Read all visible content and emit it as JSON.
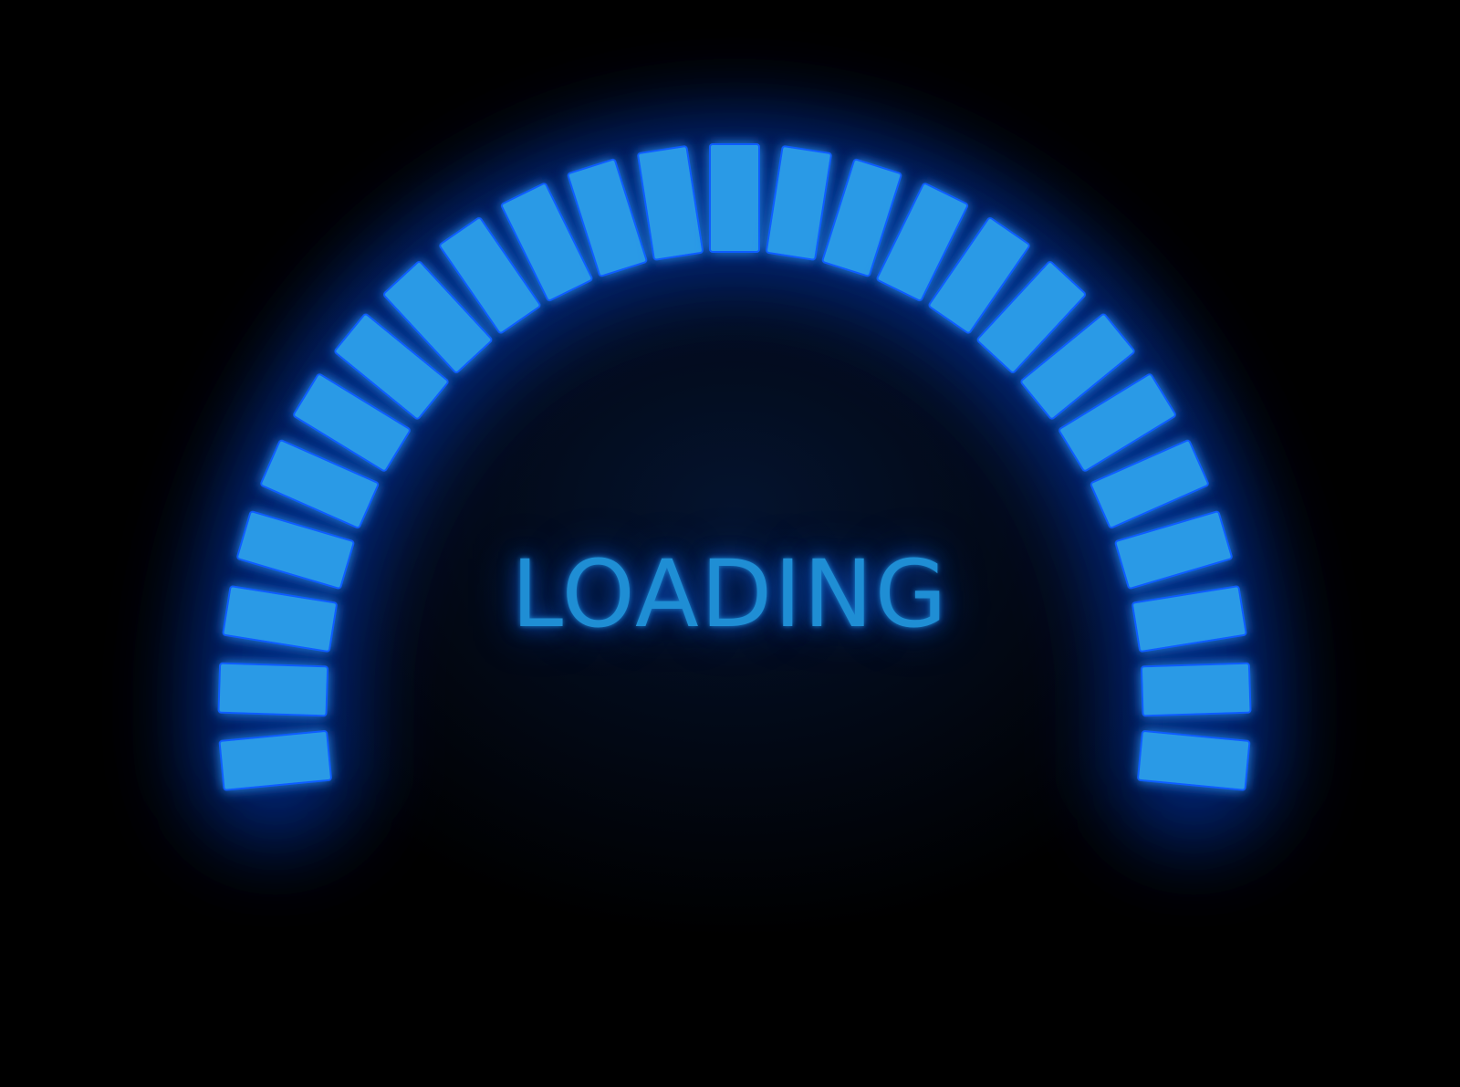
{
  "loading_screen": {
    "label": "LOADING",
    "segments_total": 25,
    "segments_filled": 25,
    "colors": {
      "background": "#000000",
      "segment_fill": "#2a9ae6",
      "segment_glow": "#0f5cff",
      "label_text": "#1f8ed4"
    }
  }
}
